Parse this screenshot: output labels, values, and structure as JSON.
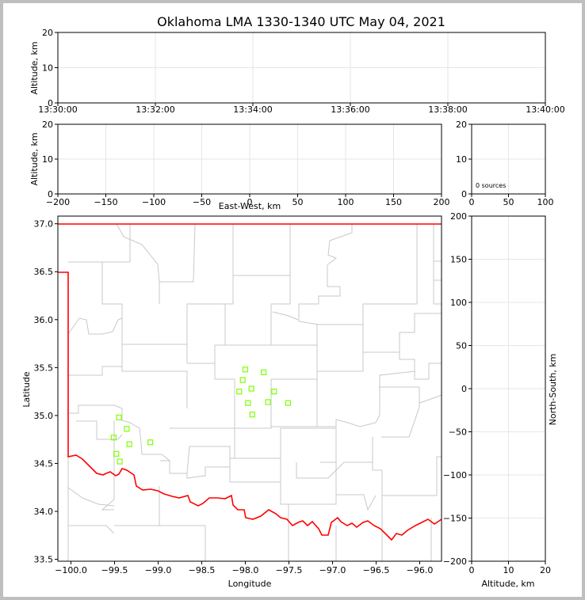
{
  "chart_data": [
    {
      "panel": "time-altitude",
      "type": "scatter",
      "title": "Oklahoma LMA 1330-1340 UTC May 04, 2021",
      "ylabel": "Altitude, km",
      "ylim": [
        0,
        20
      ],
      "yticks": [
        "0",
        "10",
        "20"
      ],
      "xticks": [
        "13:30:00",
        "13:32:00",
        "13:34:00",
        "13:36:00",
        "13:38:00",
        "13:40:00"
      ],
      "points": []
    },
    {
      "panel": "east-west-altitude",
      "type": "scatter",
      "xlabel": "East-West, km",
      "ylabel": "Altitude, km",
      "xlim": [
        -200,
        200
      ],
      "ylim": [
        0,
        20
      ],
      "xticks": [
        "−200",
        "−150",
        "−100",
        "−50",
        "0",
        "50",
        "100",
        "150",
        "200"
      ],
      "yticks": [
        "0",
        "10",
        "20"
      ],
      "points": []
    },
    {
      "panel": "histogram",
      "type": "bar",
      "xlim": [
        0,
        100
      ],
      "ylim": [
        0,
        20
      ],
      "xticks": [
        "0",
        "50",
        "100"
      ],
      "yticks": [
        "0",
        "10",
        "20"
      ],
      "annotation": "0 sources",
      "values": []
    },
    {
      "panel": "plan-view",
      "type": "scatter",
      "xlabel": "Longitude",
      "ylabel": "Latitude",
      "xlim": [
        -100.15,
        -95.75
      ],
      "ylim": [
        33.48,
        37.08
      ],
      "xticks": [
        "−100.0",
        "−99.5",
        "−99.0",
        "−98.5",
        "−98.0",
        "−97.5",
        "−97.0",
        "−96.5",
        "−96.0"
      ],
      "yticks": [
        "33.5",
        "34.0",
        "34.5",
        "35.0",
        "35.5",
        "36.0",
        "36.5",
        "37.0"
      ],
      "series": [
        {
          "name": "stations",
          "color": "#7fff00",
          "points": [
            [
              -98.0,
              35.48
            ],
            [
              -97.79,
              35.45
            ],
            [
              -98.03,
              35.37
            ],
            [
              -97.93,
              35.28
            ],
            [
              -98.07,
              35.25
            ],
            [
              -97.67,
              35.25
            ],
            [
              -97.97,
              35.13
            ],
            [
              -97.74,
              35.14
            ],
            [
              -97.51,
              35.13
            ],
            [
              -97.92,
              35.01
            ],
            [
              -99.45,
              34.98
            ],
            [
              -99.36,
              34.86
            ],
            [
              -99.51,
              34.77
            ],
            [
              -99.33,
              34.7
            ],
            [
              -99.09,
              34.72
            ],
            [
              -99.48,
              34.6
            ],
            [
              -99.44,
              34.52
            ]
          ]
        }
      ],
      "border_color": "#ff0000",
      "county_color": "#c8c8c8"
    },
    {
      "panel": "altitude-north-south",
      "type": "scatter",
      "xlabel": "Altitude, km",
      "ylabel": "North-South, km",
      "xlim": [
        0,
        20
      ],
      "ylim": [
        -200,
        200
      ],
      "xticks": [
        "0",
        "10",
        "20"
      ],
      "yticks": [
        "−200",
        "−150",
        "−100",
        "−50",
        "0",
        "50",
        "100",
        "150",
        "200"
      ],
      "points": []
    }
  ]
}
